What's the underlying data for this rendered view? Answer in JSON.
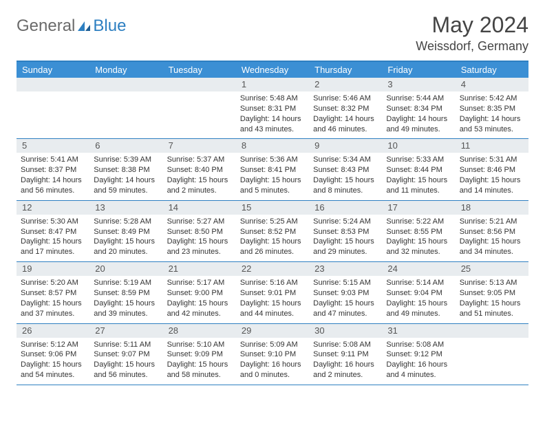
{
  "logo": {
    "general": "General",
    "blue": "Blue"
  },
  "title": {
    "month": "May 2024",
    "location": "Weissdorf, Germany"
  },
  "columns": [
    "Sunday",
    "Monday",
    "Tuesday",
    "Wednesday",
    "Thursday",
    "Friday",
    "Saturday"
  ],
  "colors": {
    "header_bg": "#3b8fd4",
    "accent": "#2d7fc1",
    "daynum_bg": "#e8ecef",
    "text": "#333333",
    "title_text": "#444444"
  },
  "weeks": [
    [
      {
        "day": "",
        "sunrise": "",
        "sunset": "",
        "daylight": ""
      },
      {
        "day": "",
        "sunrise": "",
        "sunset": "",
        "daylight": ""
      },
      {
        "day": "",
        "sunrise": "",
        "sunset": "",
        "daylight": ""
      },
      {
        "day": "1",
        "sunrise": "Sunrise: 5:48 AM",
        "sunset": "Sunset: 8:31 PM",
        "daylight": "Daylight: 14 hours and 43 minutes."
      },
      {
        "day": "2",
        "sunrise": "Sunrise: 5:46 AM",
        "sunset": "Sunset: 8:32 PM",
        "daylight": "Daylight: 14 hours and 46 minutes."
      },
      {
        "day": "3",
        "sunrise": "Sunrise: 5:44 AM",
        "sunset": "Sunset: 8:34 PM",
        "daylight": "Daylight: 14 hours and 49 minutes."
      },
      {
        "day": "4",
        "sunrise": "Sunrise: 5:42 AM",
        "sunset": "Sunset: 8:35 PM",
        "daylight": "Daylight: 14 hours and 53 minutes."
      }
    ],
    [
      {
        "day": "5",
        "sunrise": "Sunrise: 5:41 AM",
        "sunset": "Sunset: 8:37 PM",
        "daylight": "Daylight: 14 hours and 56 minutes."
      },
      {
        "day": "6",
        "sunrise": "Sunrise: 5:39 AM",
        "sunset": "Sunset: 8:38 PM",
        "daylight": "Daylight: 14 hours and 59 minutes."
      },
      {
        "day": "7",
        "sunrise": "Sunrise: 5:37 AM",
        "sunset": "Sunset: 8:40 PM",
        "daylight": "Daylight: 15 hours and 2 minutes."
      },
      {
        "day": "8",
        "sunrise": "Sunrise: 5:36 AM",
        "sunset": "Sunset: 8:41 PM",
        "daylight": "Daylight: 15 hours and 5 minutes."
      },
      {
        "day": "9",
        "sunrise": "Sunrise: 5:34 AM",
        "sunset": "Sunset: 8:43 PM",
        "daylight": "Daylight: 15 hours and 8 minutes."
      },
      {
        "day": "10",
        "sunrise": "Sunrise: 5:33 AM",
        "sunset": "Sunset: 8:44 PM",
        "daylight": "Daylight: 15 hours and 11 minutes."
      },
      {
        "day": "11",
        "sunrise": "Sunrise: 5:31 AM",
        "sunset": "Sunset: 8:46 PM",
        "daylight": "Daylight: 15 hours and 14 minutes."
      }
    ],
    [
      {
        "day": "12",
        "sunrise": "Sunrise: 5:30 AM",
        "sunset": "Sunset: 8:47 PM",
        "daylight": "Daylight: 15 hours and 17 minutes."
      },
      {
        "day": "13",
        "sunrise": "Sunrise: 5:28 AM",
        "sunset": "Sunset: 8:49 PM",
        "daylight": "Daylight: 15 hours and 20 minutes."
      },
      {
        "day": "14",
        "sunrise": "Sunrise: 5:27 AM",
        "sunset": "Sunset: 8:50 PM",
        "daylight": "Daylight: 15 hours and 23 minutes."
      },
      {
        "day": "15",
        "sunrise": "Sunrise: 5:25 AM",
        "sunset": "Sunset: 8:52 PM",
        "daylight": "Daylight: 15 hours and 26 minutes."
      },
      {
        "day": "16",
        "sunrise": "Sunrise: 5:24 AM",
        "sunset": "Sunset: 8:53 PM",
        "daylight": "Daylight: 15 hours and 29 minutes."
      },
      {
        "day": "17",
        "sunrise": "Sunrise: 5:22 AM",
        "sunset": "Sunset: 8:55 PM",
        "daylight": "Daylight: 15 hours and 32 minutes."
      },
      {
        "day": "18",
        "sunrise": "Sunrise: 5:21 AM",
        "sunset": "Sunset: 8:56 PM",
        "daylight": "Daylight: 15 hours and 34 minutes."
      }
    ],
    [
      {
        "day": "19",
        "sunrise": "Sunrise: 5:20 AM",
        "sunset": "Sunset: 8:57 PM",
        "daylight": "Daylight: 15 hours and 37 minutes."
      },
      {
        "day": "20",
        "sunrise": "Sunrise: 5:19 AM",
        "sunset": "Sunset: 8:59 PM",
        "daylight": "Daylight: 15 hours and 39 minutes."
      },
      {
        "day": "21",
        "sunrise": "Sunrise: 5:17 AM",
        "sunset": "Sunset: 9:00 PM",
        "daylight": "Daylight: 15 hours and 42 minutes."
      },
      {
        "day": "22",
        "sunrise": "Sunrise: 5:16 AM",
        "sunset": "Sunset: 9:01 PM",
        "daylight": "Daylight: 15 hours and 44 minutes."
      },
      {
        "day": "23",
        "sunrise": "Sunrise: 5:15 AM",
        "sunset": "Sunset: 9:03 PM",
        "daylight": "Daylight: 15 hours and 47 minutes."
      },
      {
        "day": "24",
        "sunrise": "Sunrise: 5:14 AM",
        "sunset": "Sunset: 9:04 PM",
        "daylight": "Daylight: 15 hours and 49 minutes."
      },
      {
        "day": "25",
        "sunrise": "Sunrise: 5:13 AM",
        "sunset": "Sunset: 9:05 PM",
        "daylight": "Daylight: 15 hours and 51 minutes."
      }
    ],
    [
      {
        "day": "26",
        "sunrise": "Sunrise: 5:12 AM",
        "sunset": "Sunset: 9:06 PM",
        "daylight": "Daylight: 15 hours and 54 minutes."
      },
      {
        "day": "27",
        "sunrise": "Sunrise: 5:11 AM",
        "sunset": "Sunset: 9:07 PM",
        "daylight": "Daylight: 15 hours and 56 minutes."
      },
      {
        "day": "28",
        "sunrise": "Sunrise: 5:10 AM",
        "sunset": "Sunset: 9:09 PM",
        "daylight": "Daylight: 15 hours and 58 minutes."
      },
      {
        "day": "29",
        "sunrise": "Sunrise: 5:09 AM",
        "sunset": "Sunset: 9:10 PM",
        "daylight": "Daylight: 16 hours and 0 minutes."
      },
      {
        "day": "30",
        "sunrise": "Sunrise: 5:08 AM",
        "sunset": "Sunset: 9:11 PM",
        "daylight": "Daylight: 16 hours and 2 minutes."
      },
      {
        "day": "31",
        "sunrise": "Sunrise: 5:08 AM",
        "sunset": "Sunset: 9:12 PM",
        "daylight": "Daylight: 16 hours and 4 minutes."
      },
      {
        "day": "",
        "sunrise": "",
        "sunset": "",
        "daylight": ""
      }
    ]
  ]
}
